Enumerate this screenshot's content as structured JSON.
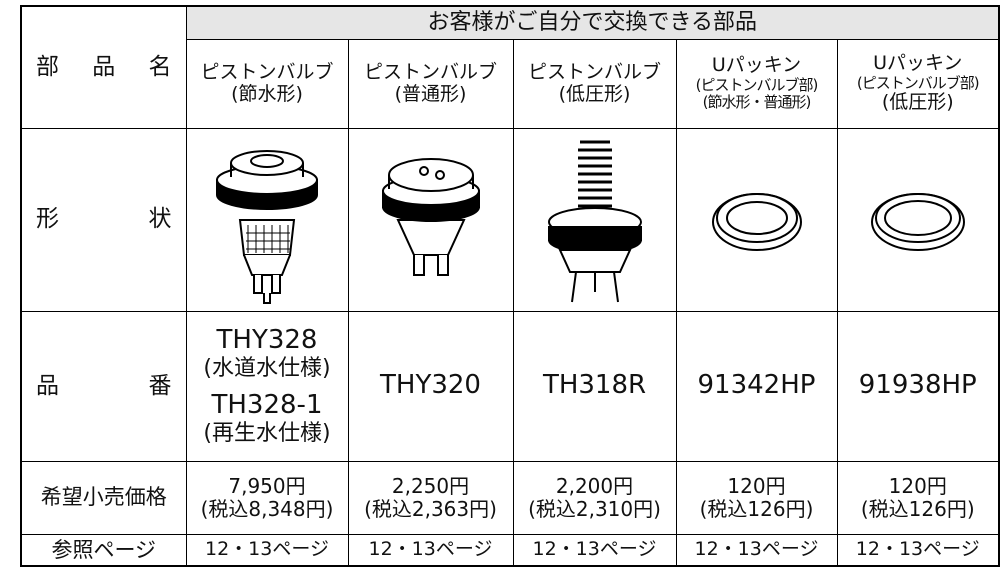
{
  "table": {
    "group_header": "お客様がご自分で交換できる部品",
    "row_labels": [
      "部品名",
      "形状",
      "品番",
      "希望小売価格",
      "参照ページ"
    ],
    "columns": [
      {
        "name": [
          "ピストンバルブ",
          "(節水形)"
        ],
        "part_number": [
          "THY328",
          "(水道水仕様)",
          "TH328-1",
          "(再生水仕様)"
        ],
        "price": [
          "7,950円",
          "(税込8,348円)"
        ],
        "reference": "12・13ページ"
      },
      {
        "name": [
          "ピストンバルブ",
          "(普通形)"
        ],
        "part_number": [
          "THY320"
        ],
        "price": [
          "2,250円",
          "(税込2,363円)"
        ],
        "reference": "12・13ページ"
      },
      {
        "name": [
          "ピストンバルブ",
          "(低圧形)"
        ],
        "part_number": [
          "TH318R"
        ],
        "price": [
          "2,200円",
          "(税込2,310円)"
        ],
        "reference": "12・13ページ"
      },
      {
        "name": [
          "Uパッキン",
          "(ピストンバルブ部)",
          "(節水形・普通形)"
        ],
        "part_number": [
          "91342HP"
        ],
        "price": [
          "120円",
          "(税込126円)"
        ],
        "reference": "12・13ページ"
      },
      {
        "name": [
          "Uパッキン",
          "(ピストンバルブ部)",
          "(低圧形)"
        ],
        "part_number": [
          "91938HP"
        ],
        "price": [
          "120円",
          "(税込126円)"
        ],
        "reference": "12・13ページ"
      }
    ]
  }
}
